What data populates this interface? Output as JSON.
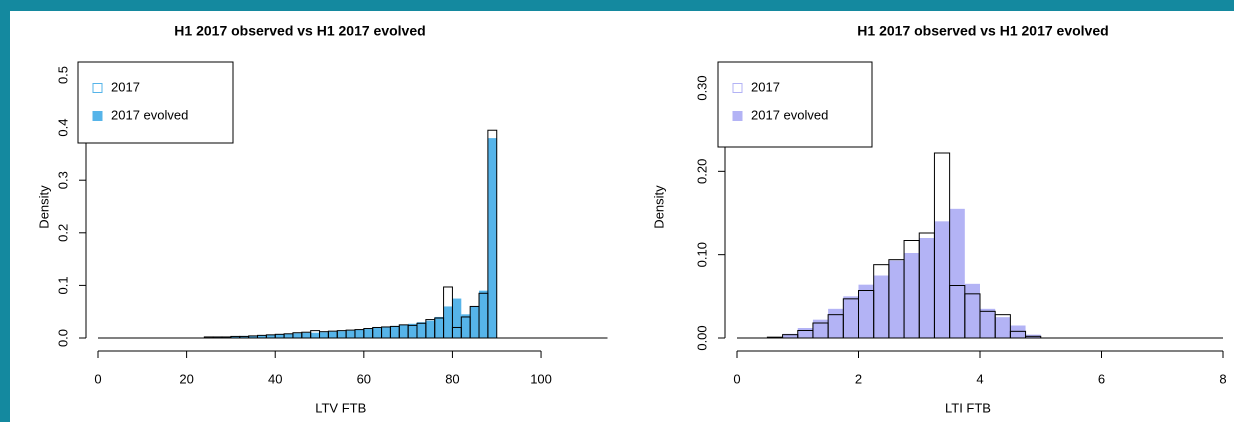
{
  "charts": [
    {
      "type": "histogram",
      "title": "H1 2017 observed vs H1 2017 evolved",
      "x_label": "LTV FTB",
      "y_label": "Density",
      "bins": [
        24,
        26,
        28,
        30,
        32,
        34,
        36,
        38,
        40,
        42,
        44,
        46,
        48,
        50,
        52,
        54,
        56,
        58,
        60,
        62,
        64,
        66,
        68,
        70,
        72,
        74,
        76,
        78,
        80,
        82,
        84,
        86,
        88,
        90
      ],
      "series": [
        {
          "name": "2017",
          "color": "#000000",
          "filled": false,
          "legend_color": "#56b4e9",
          "values": [
            0.002,
            0.002,
            0.002,
            0.003,
            0.003,
            0.004,
            0.005,
            0.006,
            0.007,
            0.008,
            0.01,
            0.011,
            0.014,
            0.012,
            0.013,
            0.014,
            0.015,
            0.016,
            0.018,
            0.02,
            0.021,
            0.022,
            0.025,
            0.024,
            0.028,
            0.035,
            0.038,
            0.097,
            0.02,
            0.04,
            0.06,
            0.085,
            0.395
          ]
        },
        {
          "name": "2017 evolved",
          "color": "#56b4e9",
          "filled": true,
          "legend_color": "#56b4e9",
          "values": [
            0.001,
            0.002,
            0.002,
            0.003,
            0.004,
            0.004,
            0.005,
            0.006,
            0.007,
            0.008,
            0.009,
            0.01,
            0.01,
            0.011,
            0.012,
            0.013,
            0.014,
            0.016,
            0.017,
            0.019,
            0.021,
            0.023,
            0.025,
            0.027,
            0.03,
            0.033,
            0.04,
            0.06,
            0.075,
            0.045,
            0.06,
            0.09,
            0.38
          ]
        }
      ],
      "xlim": [
        0,
        115
      ],
      "xticks": [
        0,
        20,
        40,
        60,
        80,
        100
      ],
      "ylim": [
        0,
        0.5
      ],
      "yticks": [
        {
          "value": 0,
          "label": "0.0"
        },
        0.1,
        0.2,
        0.3,
        0.4,
        0.5
      ],
      "legend": "top-left"
    },
    {
      "type": "histogram",
      "title": "H1 2017 observed vs H1 2017 evolved",
      "x_label": "LTI FTB",
      "y_label": "Density",
      "bins": [
        0.5,
        0.75,
        1,
        1.25,
        1.5,
        1.75,
        2,
        2.25,
        2.5,
        2.75,
        3,
        3.25,
        3.5,
        3.75,
        4,
        4.25,
        4.5,
        4.75,
        5
      ],
      "series": [
        {
          "name": "2017",
          "color": "#000000",
          "filled": false,
          "legend_color": "#b3b3f5",
          "values": [
            0.001,
            0.004,
            0.009,
            0.018,
            0.028,
            0.047,
            0.057,
            0.088,
            0.094,
            0.117,
            0.126,
            0.222,
            0.063,
            0.053,
            0.032,
            0.028,
            0.008,
            0.002
          ]
        },
        {
          "name": "2017 evolved",
          "color": "#b3b3f5",
          "filled": true,
          "legend_color": "#b3b3f5",
          "values": [
            0.001,
            0.005,
            0.012,
            0.022,
            0.035,
            0.05,
            0.064,
            0.075,
            0.093,
            0.102,
            0.12,
            0.14,
            0.155,
            0.065,
            0.035,
            0.025,
            0.015,
            0.004
          ]
        }
      ],
      "xlim": [
        0,
        8
      ],
      "xticks": [
        0,
        2,
        4,
        6,
        8
      ],
      "ylim": [
        0,
        0.3
      ],
      "yticks": [
        {
          "value": 0,
          "label": "0.00"
        },
        {
          "value": 0.1,
          "label": "0.10"
        },
        {
          "value": 0.2,
          "label": "0.20"
        },
        {
          "value": 0.3,
          "label": "0.30"
        }
      ],
      "legend": "top-left"
    }
  ]
}
